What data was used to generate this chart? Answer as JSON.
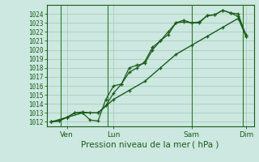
{
  "xlabel": "Pression niveau de la mer ( hPa )",
  "bg_color": "#cce8e0",
  "grid_color": "#aaccbb",
  "line_color": "#1a5c1a",
  "vline_color": "#2a7a2a",
  "ylim": [
    1011.5,
    1025.0
  ],
  "yticks": [
    1012,
    1013,
    1014,
    1015,
    1016,
    1017,
    1018,
    1019,
    1020,
    1021,
    1022,
    1023,
    1024
  ],
  "xlim": [
    -0.3,
    13.0
  ],
  "xtick_labels": [
    "Ven",
    "Lun",
    "Sam",
    "Dim"
  ],
  "xtick_positions": [
    1.0,
    4.0,
    9.0,
    12.5
  ],
  "vline_positions": [
    0.6,
    3.6,
    9.0,
    12.3
  ],
  "line1_x": [
    0,
    0.5,
    1.0,
    1.5,
    2.0,
    2.5,
    3.0,
    3.5,
    4.0,
    4.5,
    5.0,
    5.5,
    6.0,
    6.5,
    7.0,
    7.5,
    8.0,
    8.5,
    9.0,
    9.5,
    10.0,
    10.5,
    11.0,
    11.5,
    12.0,
    12.5
  ],
  "line1_y": [
    1012.0,
    1012.1,
    1012.5,
    1013.0,
    1013.1,
    1013.0,
    1013.0,
    1013.8,
    1015.2,
    1016.2,
    1017.5,
    1018.0,
    1018.7,
    1020.3,
    1021.0,
    1021.7,
    1023.0,
    1023.3,
    1023.0,
    1023.1,
    1023.8,
    1023.9,
    1024.4,
    1024.1,
    1024.0,
    1021.5
  ],
  "line2_x": [
    0,
    0.5,
    1.0,
    1.5,
    2.0,
    2.5,
    3.0,
    3.5,
    4.0,
    4.5,
    5.0,
    5.5,
    6.0,
    6.5,
    7.0,
    7.5,
    8.0,
    8.5,
    9.0,
    9.5,
    10.0,
    10.5,
    11.0,
    11.5,
    12.0,
    12.5
  ],
  "line2_y": [
    1012.0,
    1012.1,
    1012.5,
    1013.0,
    1013.0,
    1012.2,
    1012.1,
    1014.5,
    1016.0,
    1016.2,
    1018.0,
    1018.3,
    1018.5,
    1020.0,
    1021.0,
    1022.0,
    1023.0,
    1023.1,
    1023.0,
    1023.0,
    1023.8,
    1023.9,
    1024.4,
    1024.1,
    1023.7,
    1021.7
  ],
  "line3_x": [
    0,
    1.0,
    2.0,
    3.0,
    4.0,
    5.0,
    6.0,
    7.0,
    8.0,
    9.0,
    10.0,
    11.0,
    12.0,
    12.5
  ],
  "line3_y": [
    1012.0,
    1012.5,
    1013.0,
    1013.0,
    1014.5,
    1015.5,
    1016.5,
    1018.0,
    1019.5,
    1020.5,
    1021.5,
    1022.5,
    1023.5,
    1021.5
  ]
}
